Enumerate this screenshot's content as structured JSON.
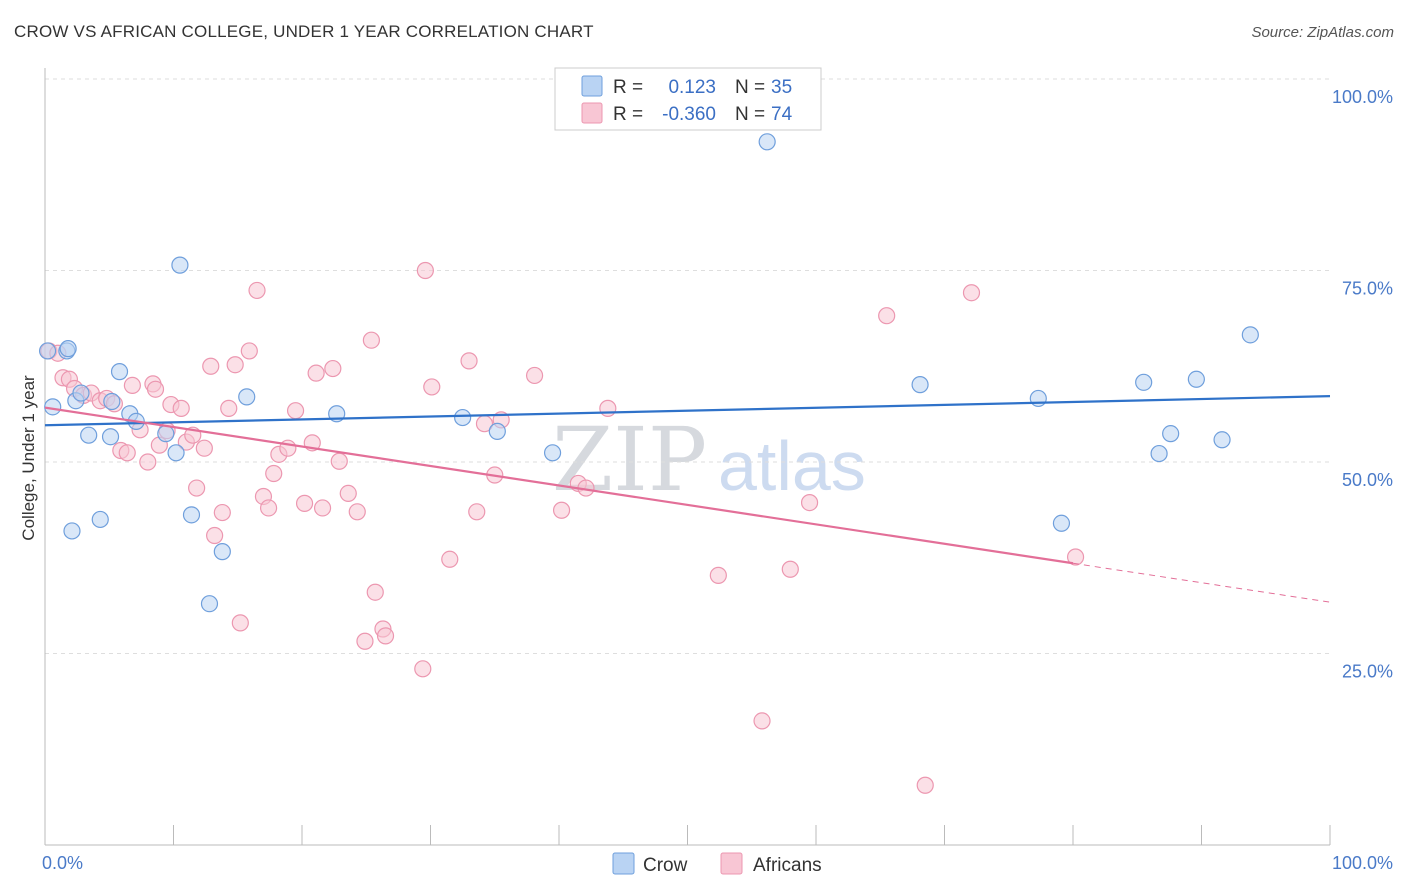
{
  "title": "CROW VS AFRICAN COLLEGE, UNDER 1 YEAR CORRELATION CHART",
  "source": "Source: ZipAtlas.com",
  "watermark": {
    "zip": "ZIP",
    "atlas": "atlas"
  },
  "colors": {
    "crow_fill": "#b9d3f3",
    "crow_stroke": "#6f9fdc",
    "crow_line": "#2f72c9",
    "africans_fill": "#f8c6d4",
    "africans_stroke": "#ec97b0",
    "africans_line": "#e36f98",
    "grid": "#dedede",
    "tick_text": "#4a7ac8"
  },
  "legend": {
    "rows": [
      {
        "r_label": "R =",
        "r_value": "0.123",
        "n_label": "N =",
        "n_value": "35"
      },
      {
        "r_label": "R =",
        "r_value": "-0.360",
        "n_label": "N =",
        "n_value": "74"
      }
    ]
  },
  "bottom_legend": {
    "crow": "Crow",
    "africans": "Africans"
  },
  "chart_data": {
    "type": "scatter",
    "title": "CROW VS AFRICAN COLLEGE, UNDER 1 YEAR CORRELATION CHART",
    "xlabel": "",
    "ylabel": "College, Under 1 year",
    "xlim": [
      0,
      100
    ],
    "ylim": [
      0,
      100
    ],
    "x_tick_labels": [
      "0.0%",
      "100.0%"
    ],
    "y_ticks": [
      25,
      50,
      75,
      100
    ],
    "y_tick_labels": [
      "25.0%",
      "50.0%",
      "75.0%",
      "100.0%"
    ],
    "series": [
      {
        "name": "Crow",
        "r": 0.123,
        "n": 35,
        "trend": {
          "x": [
            0,
            100
          ],
          "y": [
            54.8,
            58.6
          ],
          "dashed_from": null
        },
        "points": [
          [
            0.2,
            64.5
          ],
          [
            0.6,
            57.2
          ],
          [
            1.7,
            64.5
          ],
          [
            1.8,
            64.8
          ],
          [
            2.1,
            41.0
          ],
          [
            2.4,
            58.0
          ],
          [
            2.8,
            59.0
          ],
          [
            3.4,
            53.5
          ],
          [
            4.3,
            42.5
          ],
          [
            5.1,
            53.3
          ],
          [
            5.2,
            57.9
          ],
          [
            5.8,
            61.8
          ],
          [
            6.6,
            56.3
          ],
          [
            7.1,
            55.3
          ],
          [
            9.4,
            53.7
          ],
          [
            10.2,
            51.2
          ],
          [
            10.5,
            75.7
          ],
          [
            11.4,
            43.1
          ],
          [
            12.8,
            31.5
          ],
          [
            13.8,
            38.3
          ],
          [
            15.7,
            58.5
          ],
          [
            22.7,
            56.3
          ],
          [
            32.5,
            55.8
          ],
          [
            35.2,
            54.0
          ],
          [
            39.5,
            51.2
          ],
          [
            56.2,
            91.8
          ],
          [
            68.1,
            60.1
          ],
          [
            77.3,
            58.3
          ],
          [
            79.1,
            42.0
          ],
          [
            85.5,
            60.4
          ],
          [
            86.7,
            51.1
          ],
          [
            87.6,
            53.7
          ],
          [
            89.6,
            60.8
          ],
          [
            91.6,
            52.9
          ],
          [
            93.8,
            66.6
          ]
        ]
      },
      {
        "name": "Africans",
        "r": -0.36,
        "n": 74,
        "trend": {
          "x": [
            0,
            100
          ],
          "y": [
            57.1,
            31.7
          ],
          "dashed_from": 80
        },
        "points": [
          [
            0.3,
            64.5
          ],
          [
            1.0,
            64.2
          ],
          [
            1.4,
            61.0
          ],
          [
            1.9,
            60.8
          ],
          [
            2.3,
            59.6
          ],
          [
            3.0,
            58.7
          ],
          [
            3.6,
            59.0
          ],
          [
            4.3,
            58.0
          ],
          [
            4.8,
            58.3
          ],
          [
            5.4,
            57.6
          ],
          [
            5.9,
            51.5
          ],
          [
            6.4,
            51.2
          ],
          [
            6.8,
            60.0
          ],
          [
            7.4,
            54.2
          ],
          [
            8.0,
            50.0
          ],
          [
            8.4,
            60.2
          ],
          [
            8.9,
            52.2
          ],
          [
            9.5,
            54.1
          ],
          [
            9.8,
            57.5
          ],
          [
            10.6,
            57.0
          ],
          [
            11.0,
            52.6
          ],
          [
            11.5,
            53.5
          ],
          [
            11.8,
            46.6
          ],
          [
            12.4,
            51.8
          ],
          [
            12.9,
            62.5
          ],
          [
            13.2,
            40.4
          ],
          [
            13.8,
            43.4
          ],
          [
            14.3,
            57.0
          ],
          [
            14.8,
            62.7
          ],
          [
            15.2,
            29.0
          ],
          [
            15.9,
            64.5
          ],
          [
            16.5,
            72.4
          ],
          [
            17.0,
            45.5
          ],
          [
            17.4,
            44.0
          ],
          [
            17.8,
            48.5
          ],
          [
            18.2,
            51.0
          ],
          [
            18.9,
            51.8
          ],
          [
            19.5,
            56.7
          ],
          [
            20.2,
            44.6
          ],
          [
            20.8,
            52.5
          ],
          [
            21.1,
            61.6
          ],
          [
            21.6,
            44.0
          ],
          [
            22.4,
            62.2
          ],
          [
            22.9,
            50.1
          ],
          [
            23.6,
            45.9
          ],
          [
            24.3,
            43.5
          ],
          [
            24.9,
            26.6
          ],
          [
            25.4,
            65.9
          ],
          [
            25.7,
            33.0
          ],
          [
            26.3,
            28.2
          ],
          [
            29.4,
            23.0
          ],
          [
            29.6,
            75.0
          ],
          [
            30.1,
            59.8
          ],
          [
            31.5,
            37.3
          ],
          [
            33.0,
            63.2
          ],
          [
            33.6,
            43.5
          ],
          [
            34.2,
            55.0
          ],
          [
            35.0,
            48.3
          ],
          [
            35.5,
            55.5
          ],
          [
            38.1,
            61.3
          ],
          [
            40.2,
            43.7
          ],
          [
            41.5,
            47.2
          ],
          [
            42.1,
            46.6
          ],
          [
            43.8,
            57.0
          ],
          [
            52.4,
            35.2
          ],
          [
            55.8,
            16.2
          ],
          [
            58.0,
            36.0
          ],
          [
            59.5,
            44.7
          ],
          [
            65.5,
            69.1
          ],
          [
            68.5,
            7.8
          ],
          [
            72.1,
            72.1
          ],
          [
            80.2,
            37.6
          ],
          [
            26.5,
            27.3
          ],
          [
            8.6,
            59.5
          ]
        ]
      }
    ]
  }
}
